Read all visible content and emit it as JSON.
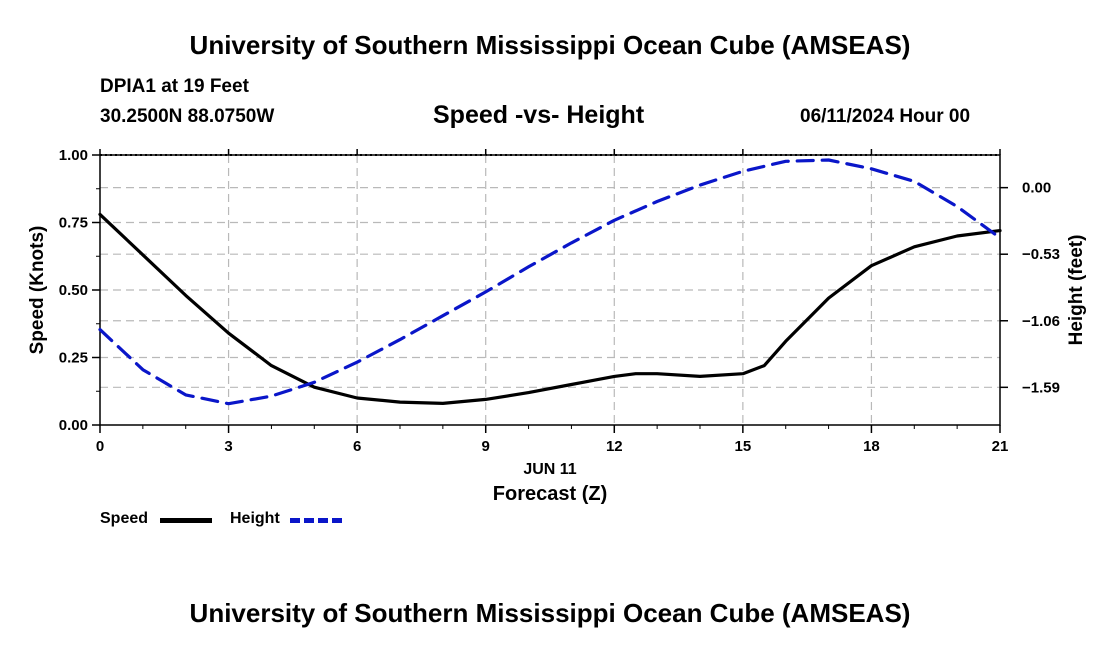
{
  "header": {
    "title": "University of Southern Mississippi Ocean Cube (AMSEAS)",
    "station": "DPIA1 at 19 Feet",
    "coords": "30.2500N  88.0750W",
    "subtitle": "Speed -vs- Height",
    "datetime": "06/11/2024 Hour 00"
  },
  "footer": {
    "title": "University of Southern Mississippi Ocean Cube (AMSEAS)"
  },
  "legend": {
    "speed_label": "Speed",
    "height_label": "Height"
  },
  "chart_data": {
    "type": "line",
    "title": "Speed -vs- Height",
    "xlabel": "Forecast (Z)",
    "xdate_label": "JUN 11",
    "ylabel_left": "Speed (Knots)",
    "ylabel_right": "Height (feet)",
    "xlim": [
      0,
      21
    ],
    "ylim_left": [
      0,
      1.0
    ],
    "ylim_right": [
      -1.89,
      0.26
    ],
    "x_ticks": [
      0,
      3,
      6,
      9,
      12,
      15,
      18,
      21
    ],
    "x_tick_labels": [
      "0",
      "3",
      "6",
      "9",
      "12",
      "15",
      "18",
      "21"
    ],
    "y_left_ticks": [
      0,
      0.25,
      0.5,
      0.75,
      1.0
    ],
    "y_left_tick_labels": [
      "0.00",
      "0.25",
      "0.50",
      "0.75",
      "1.00"
    ],
    "y_right_ticks": [
      0.0,
      -0.53,
      -1.06,
      -1.59
    ],
    "y_right_tick_labels": [
      "0.00",
      "−0.53",
      "−1.06",
      "−1.59"
    ],
    "grid": true,
    "series": [
      {
        "name": "Speed",
        "axis": "left",
        "color": "#000000",
        "style": "solid",
        "x": [
          0,
          1,
          2,
          3,
          4,
          5,
          6,
          7,
          8,
          9,
          10,
          11,
          12,
          12.5,
          13,
          14,
          15,
          15.5,
          16,
          17,
          18,
          19,
          20,
          21
        ],
        "values": [
          0.78,
          0.63,
          0.48,
          0.34,
          0.22,
          0.14,
          0.1,
          0.085,
          0.08,
          0.095,
          0.12,
          0.15,
          0.18,
          0.19,
          0.19,
          0.18,
          0.19,
          0.22,
          0.31,
          0.47,
          0.59,
          0.66,
          0.7,
          0.72
        ]
      },
      {
        "name": "Height",
        "axis": "right",
        "color": "#0a16c9",
        "style": "dashed",
        "x": [
          0,
          1,
          2,
          3,
          4,
          5,
          6,
          7,
          8,
          9,
          10,
          11,
          12,
          13,
          14,
          15,
          16,
          17,
          18,
          19,
          20,
          21
        ],
        "values": [
          -1.13,
          -1.45,
          -1.65,
          -1.72,
          -1.66,
          -1.55,
          -1.39,
          -1.21,
          -1.02,
          -0.83,
          -0.63,
          -0.44,
          -0.26,
          -0.11,
          0.02,
          0.13,
          0.21,
          0.22,
          0.15,
          0.05,
          -0.15,
          -0.4
        ]
      }
    ]
  }
}
